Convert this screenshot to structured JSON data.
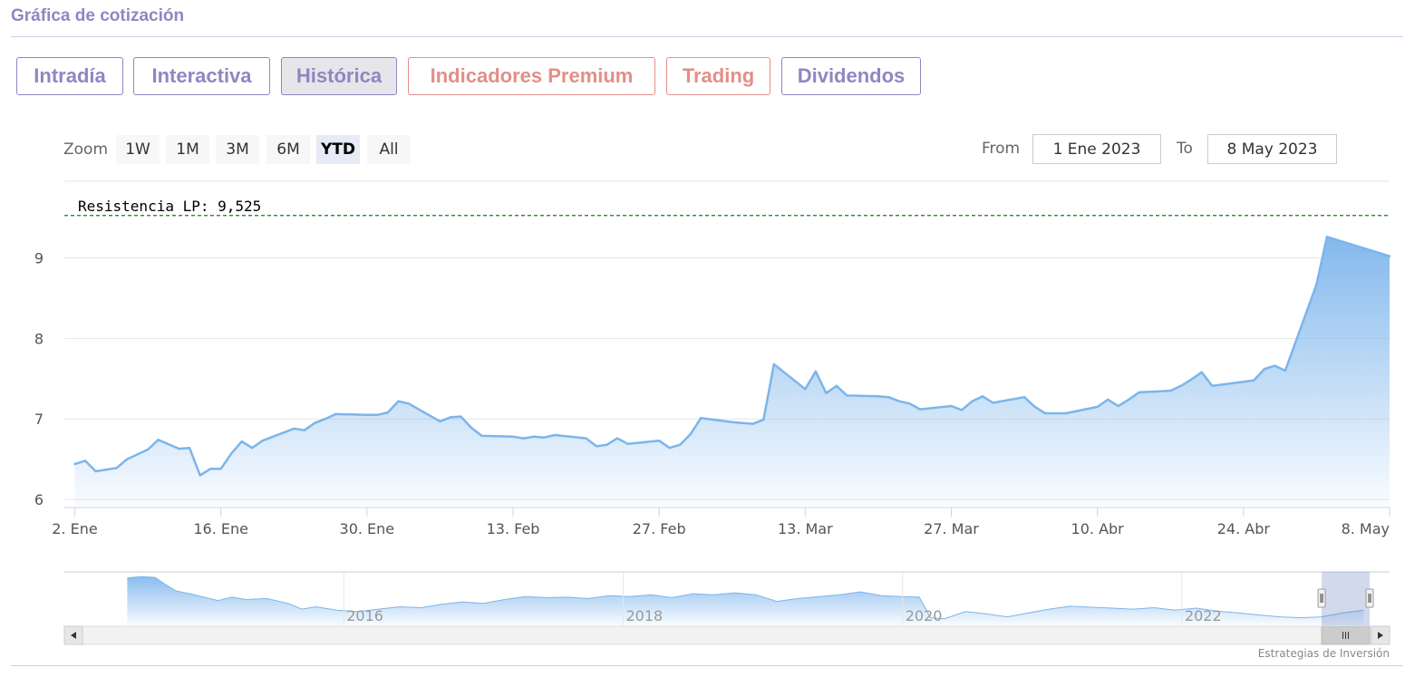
{
  "header": {
    "title": "Gráfica de cotización"
  },
  "tabs": [
    {
      "label": "Intradía",
      "style": "normal",
      "active": false
    },
    {
      "label": "Interactiva",
      "style": "normal",
      "active": false
    },
    {
      "label": "Histórica",
      "style": "normal",
      "active": true
    },
    {
      "label": "Indicadores Premium",
      "style": "premium",
      "active": false
    },
    {
      "label": "Trading",
      "style": "premium",
      "active": false
    },
    {
      "label": "Dividendos",
      "style": "normal",
      "active": false
    }
  ],
  "range_selector": {
    "zoom_label": "Zoom",
    "buttons": [
      "1W",
      "1M",
      "3M",
      "6M",
      "YTD",
      "All"
    ],
    "selected": "YTD",
    "from_label": "From",
    "from_value": "1 Ene 2023",
    "to_label": "To",
    "to_value": "8 May 2023"
  },
  "colors": {
    "accent": "#8e87c2",
    "premium": "#e28f88",
    "series_line": "#7cb5ec",
    "resistance_line": "#1a7a1a"
  },
  "source": "Estrategias de Inversión",
  "chart_data": {
    "type": "area",
    "title": "",
    "xlabel": "",
    "ylabel": "",
    "ylim": [
      5.9,
      9.95
    ],
    "yticks": [
      6,
      7,
      8,
      9
    ],
    "grid": true,
    "x_ticks": [
      "2. Ene",
      "16. Ene",
      "30. Ene",
      "13. Feb",
      "27. Feb",
      "13. Mar",
      "27. Mar",
      "10. Abr",
      "24. Abr",
      "8. May"
    ],
    "resistance": {
      "label": "Resistencia LP: 9,525",
      "value": 9.525
    },
    "series": [
      {
        "values": [
          [
            "2023-01-02",
            6.44
          ],
          [
            "2023-01-03",
            6.48
          ],
          [
            "2023-01-04",
            6.35
          ],
          [
            "2023-01-06",
            6.39
          ],
          [
            "2023-01-07",
            6.5
          ],
          [
            "2023-01-09",
            6.62
          ],
          [
            "2023-01-10",
            6.74
          ],
          [
            "2023-01-12",
            6.63
          ],
          [
            "2023-01-13",
            6.64
          ],
          [
            "2023-01-14",
            6.3
          ],
          [
            "2023-01-15",
            6.38
          ],
          [
            "2023-01-16",
            6.38
          ],
          [
            "2023-01-17",
            6.57
          ],
          [
            "2023-01-18",
            6.72
          ],
          [
            "2023-01-19",
            6.64
          ],
          [
            "2023-01-20",
            6.73
          ],
          [
            "2023-01-23",
            6.88
          ],
          [
            "2023-01-24",
            6.86
          ],
          [
            "2023-01-25",
            6.95
          ],
          [
            "2023-01-26",
            7.0
          ],
          [
            "2023-01-27",
            7.06
          ],
          [
            "2023-01-30",
            7.05
          ],
          [
            "2023-01-31",
            7.05
          ],
          [
            "2023-02-01",
            7.08
          ],
          [
            "2023-02-02",
            7.22
          ],
          [
            "2023-02-03",
            7.19
          ],
          [
            "2023-02-06",
            6.97
          ],
          [
            "2023-02-07",
            7.02
          ],
          [
            "2023-02-08",
            7.03
          ],
          [
            "2023-02-09",
            6.89
          ],
          [
            "2023-02-10",
            6.79
          ],
          [
            "2023-02-13",
            6.78
          ],
          [
            "2023-02-14",
            6.76
          ],
          [
            "2023-02-15",
            6.78
          ],
          [
            "2023-02-16",
            6.77
          ],
          [
            "2023-02-17",
            6.8
          ],
          [
            "2023-02-20",
            6.76
          ],
          [
            "2023-02-21",
            6.66
          ],
          [
            "2023-02-22",
            6.68
          ],
          [
            "2023-02-23",
            6.76
          ],
          [
            "2023-02-24",
            6.69
          ],
          [
            "2023-02-27",
            6.73
          ],
          [
            "2023-02-28",
            6.64
          ],
          [
            "2023-03-01",
            6.68
          ],
          [
            "2023-03-02",
            6.81
          ],
          [
            "2023-03-03",
            7.01
          ],
          [
            "2023-03-06",
            6.96
          ],
          [
            "2023-03-07",
            6.95
          ],
          [
            "2023-03-08",
            6.94
          ],
          [
            "2023-03-09",
            6.99
          ],
          [
            "2023-03-10",
            7.68
          ],
          [
            "2023-03-13",
            7.37
          ],
          [
            "2023-03-14",
            7.59
          ],
          [
            "2023-03-15",
            7.32
          ],
          [
            "2023-03-16",
            7.41
          ],
          [
            "2023-03-17",
            7.29
          ],
          [
            "2023-03-20",
            7.28
          ],
          [
            "2023-03-21",
            7.27
          ],
          [
            "2023-03-22",
            7.22
          ],
          [
            "2023-03-23",
            7.19
          ],
          [
            "2023-03-24",
            7.12
          ],
          [
            "2023-03-27",
            7.16
          ],
          [
            "2023-03-28",
            7.11
          ],
          [
            "2023-03-29",
            7.22
          ],
          [
            "2023-03-30",
            7.28
          ],
          [
            "2023-03-31",
            7.2
          ],
          [
            "2023-04-03",
            7.27
          ],
          [
            "2023-04-04",
            7.15
          ],
          [
            "2023-04-05",
            7.07
          ],
          [
            "2023-04-06",
            7.07
          ],
          [
            "2023-04-07",
            7.07
          ],
          [
            "2023-04-10",
            7.15
          ],
          [
            "2023-04-11",
            7.24
          ],
          [
            "2023-04-12",
            7.16
          ],
          [
            "2023-04-13",
            7.24
          ],
          [
            "2023-04-14",
            7.33
          ],
          [
            "2023-04-17",
            7.35
          ],
          [
            "2023-04-18",
            7.41
          ],
          [
            "2023-04-19",
            7.49
          ],
          [
            "2023-04-20",
            7.58
          ],
          [
            "2023-04-21",
            7.41
          ],
          [
            "2023-04-24",
            7.46
          ],
          [
            "2023-04-25",
            7.48
          ],
          [
            "2023-04-26",
            7.62
          ],
          [
            "2023-04-27",
            7.66
          ],
          [
            "2023-04-28",
            7.6
          ],
          [
            "2023-05-01",
            8.67
          ],
          [
            "2023-05-02",
            9.26
          ],
          [
            "2023-05-08",
            9.02
          ]
        ]
      }
    ],
    "navigator": {
      "x_ticks": [
        "2016",
        "2018",
        "2020",
        "2022"
      ],
      "selection": [
        "1 Ene 2023",
        "8 May 2023"
      ]
    }
  }
}
